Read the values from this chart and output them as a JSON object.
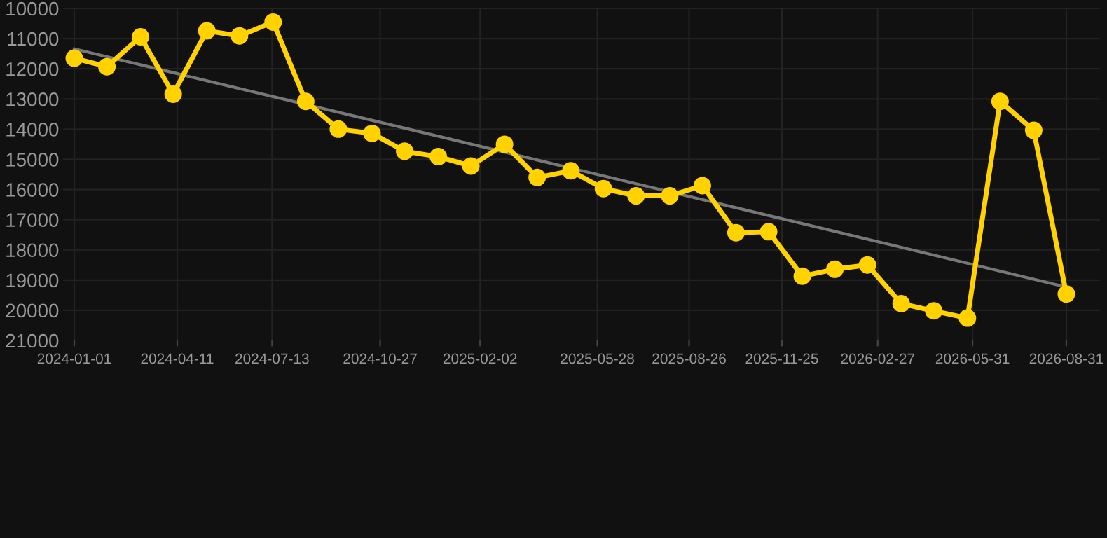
{
  "chart_data": {
    "type": "line",
    "x": [
      "2024-01-01",
      "2024-02-02",
      "2024-03-06",
      "2024-04-07",
      "2024-05-10",
      "2024-06-11",
      "2024-07-14",
      "2024-08-15",
      "2024-09-16",
      "2024-10-19",
      "2024-11-20",
      "2024-12-23",
      "2025-01-24",
      "2025-02-26",
      "2025-03-30",
      "2025-05-02",
      "2025-06-03",
      "2025-07-05",
      "2025-08-07",
      "2025-09-08",
      "2025-10-11",
      "2025-11-12",
      "2025-12-15",
      "2026-01-16",
      "2026-02-17",
      "2026-03-22",
      "2026-04-23",
      "2026-05-26",
      "2026-06-27",
      "2026-07-30",
      "2026-08-31"
    ],
    "series": [
      {
        "color": "#ffd200",
        "marker": "circle",
        "values": [
          11650,
          11930,
          10940,
          12840,
          10740,
          10910,
          10450,
          13080,
          14000,
          14140,
          14730,
          14910,
          15220,
          14500,
          15600,
          15380,
          15970,
          16210,
          16210,
          15870,
          17430,
          17400,
          18870,
          18640,
          18500,
          19780,
          20020,
          20260,
          13080,
          14040,
          19460
        ]
      },
      {
        "type": "line",
        "color": "#777777",
        "marker": "none",
        "x": [
          "2024-01-01",
          "2026-08-31"
        ],
        "values": [
          11340,
          19230
        ]
      }
    ],
    "xlim": [
      "2023-12-21",
      "2026-10-03"
    ],
    "ylim": [
      21000,
      10000
    ],
    "yticks": [
      10000,
      11000,
      12000,
      13000,
      14000,
      15000,
      16000,
      17000,
      18000,
      19000,
      20000,
      21000
    ],
    "xticks": [
      {
        "value": "2024-01-01",
        "label": "2024-01-01"
      },
      {
        "value": "2024-04-11",
        "label": "2024-04-11"
      },
      {
        "value": "2024-07-13",
        "label": "2024-07-13"
      },
      {
        "value": "2024-10-27",
        "label": "2024-10-27"
      },
      {
        "value": "2025-02-02",
        "label": "2025-02-02"
      },
      {
        "value": "2025-05-28",
        "label": "2025-05-28"
      },
      {
        "value": "2025-08-26",
        "label": "2025-08-26"
      },
      {
        "value": "2025-11-25",
        "label": "2025-11-25"
      },
      {
        "value": "2026-02-27",
        "label": "2026-02-27"
      },
      {
        "value": "2026-05-31",
        "label": "2026-05-31"
      },
      {
        "value": "2026-08-31",
        "label": "2026-08-31"
      }
    ],
    "grid": true,
    "line_style": "solid"
  }
}
